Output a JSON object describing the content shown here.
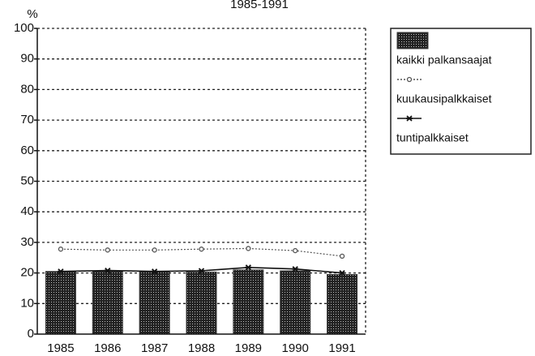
{
  "chart_data": {
    "type": "bar",
    "title": "1985-1991",
    "y_label": "%",
    "categories": [
      "1985",
      "1986",
      "1987",
      "1988",
      "1989",
      "1990",
      "1991"
    ],
    "series": [
      {
        "name": "kaikki palkansaajat",
        "type": "bar",
        "color": "#3a3a3a",
        "values": [
          20.5,
          20.5,
          20.5,
          20.3,
          21,
          20.7,
          19.5
        ]
      },
      {
        "name": "kuukausipalkkaiset",
        "type": "line",
        "color": "#555555",
        "values": [
          27.8,
          27.5,
          27.5,
          27.8,
          28,
          27.3,
          25.5
        ]
      },
      {
        "name": "tuntipalkkaiset",
        "type": "line",
        "color": "#111111",
        "values": [
          20.5,
          20.8,
          20.5,
          20.7,
          21.8,
          21.3,
          20
        ]
      }
    ],
    "ylim": [
      0,
      100
    ],
    "yticks": [
      0,
      10,
      20,
      30,
      40,
      50,
      60,
      70,
      80,
      90,
      100
    ],
    "grid": true
  }
}
